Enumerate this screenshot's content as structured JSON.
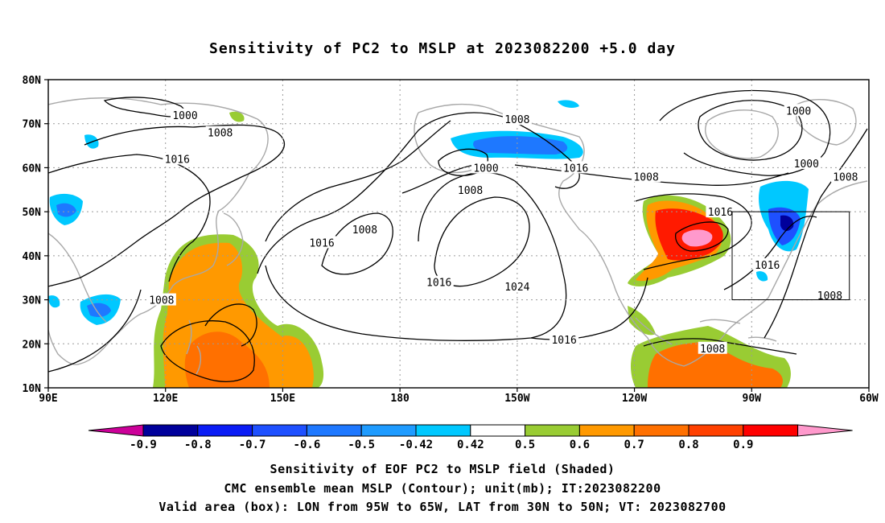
{
  "title": "Sensitivity of PC2 to MSLP at 2023082200 +5.0 day",
  "lat_labels": [
    "80N",
    "70N",
    "60N",
    "50N",
    "40N",
    "30N",
    "20N",
    "10N"
  ],
  "lon_labels": [
    "90E",
    "120E",
    "150E",
    "180",
    "150W",
    "120W",
    "90W",
    "60W"
  ],
  "contour_labels": [
    {
      "text": "1000",
      "lon": 125,
      "lat": 72
    },
    {
      "text": "1008",
      "lon": 134,
      "lat": 68
    },
    {
      "text": "1016",
      "lon": 123,
      "lat": 62
    },
    {
      "text": "1008",
      "lon": 171,
      "lat": 46
    },
    {
      "text": "1016",
      "lon": 160,
      "lat": 43
    },
    {
      "text": "1008",
      "lon": 119,
      "lat": 30
    },
    {
      "text": "1008",
      "lon": 210,
      "lat": 71
    },
    {
      "text": "1000",
      "lon": 202,
      "lat": 60
    },
    {
      "text": "1008",
      "lon": 198,
      "lat": 55
    },
    {
      "text": "1016",
      "lon": 225,
      "lat": 60
    },
    {
      "text": "1008",
      "lon": 243,
      "lat": 58
    },
    {
      "text": "1016",
      "lon": 190,
      "lat": 34
    },
    {
      "text": "1024",
      "lon": 210,
      "lat": 33
    },
    {
      "text": "1016",
      "lon": 222,
      "lat": 21
    },
    {
      "text": "1000",
      "lon": 282,
      "lat": 73
    },
    {
      "text": "1000",
      "lon": 284,
      "lat": 61
    },
    {
      "text": "1008",
      "lon": 294,
      "lat": 58
    },
    {
      "text": "1016",
      "lon": 262,
      "lat": 50
    },
    {
      "text": "1016",
      "lon": 274,
      "lat": 38
    },
    {
      "text": "1008",
      "lon": 290,
      "lat": 31
    },
    {
      "text": "1008",
      "lon": 260,
      "lat": 19
    }
  ],
  "colorbar": {
    "labels": [
      "-0.9",
      "-0.8",
      "-0.7",
      "-0.6",
      "-0.5",
      "-0.42",
      "0.42",
      "0.5",
      "0.6",
      "0.7",
      "0.8",
      "0.9"
    ],
    "colors": [
      "#00009b",
      "#0a1cf5",
      "#1e50ff",
      "#1e78ff",
      "#1e9bff",
      "#00c8ff",
      "#ffffff",
      "#99cc33",
      "#ff9900",
      "#ff7000",
      "#ff4000",
      "#ff0000"
    ],
    "low_color": "#cc0099",
    "high_color": "#ff99cc"
  },
  "footer": {
    "line1": "Sensitivity of EOF PC2 to MSLP field (Shaded)",
    "line2": "CMC ensemble mean MSLP (Contour); unit(mb); IT:2023082200",
    "line3": "Valid area (box): LON from 95W to 65W, LAT from 30N to 50N; VT: 2023082700"
  },
  "valid_box": {
    "lon_min": 265,
    "lon_max": 295,
    "lat_min": 30,
    "lat_max": 50
  }
}
